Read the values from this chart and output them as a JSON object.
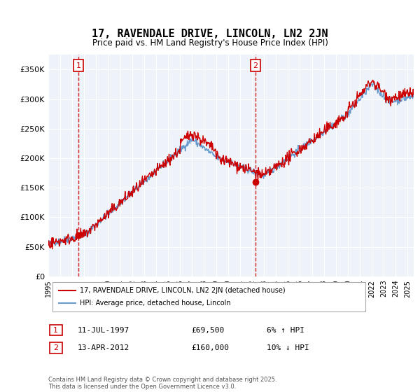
{
  "title": "17, RAVENDALE DRIVE, LINCOLN, LN2 2JN",
  "subtitle": "Price paid vs. HM Land Registry's House Price Index (HPI)",
  "ylabel_ticks": [
    "£0",
    "£50K",
    "£100K",
    "£150K",
    "£200K",
    "£250K",
    "£300K",
    "£350K"
  ],
  "ytick_vals": [
    0,
    50000,
    100000,
    150000,
    200000,
    250000,
    300000,
    350000
  ],
  "ylim": [
    0,
    370000
  ],
  "xlim_start": 1995.0,
  "xlim_end": 2025.5,
  "hpi_color": "#6699cc",
  "price_color": "#cc0000",
  "point1_x": 1997.53,
  "point1_y": 69500,
  "point2_x": 2012.28,
  "point2_y": 160000,
  "legend_label1": "17, RAVENDALE DRIVE, LINCOLN, LN2 2JN (detached house)",
  "legend_label2": "HPI: Average price, detached house, Lincoln",
  "annotation1_num": "1",
  "annotation1_date": "11-JUL-1997",
  "annotation1_price": "£69,500",
  "annotation1_hpi": "6% ↑ HPI",
  "annotation2_num": "2",
  "annotation2_date": "13-APR-2012",
  "annotation2_price": "£160,000",
  "annotation2_hpi": "10% ↓ HPI",
  "footer": "Contains HM Land Registry data © Crown copyright and database right 2025.\nThis data is licensed under the Open Government Licence v3.0.",
  "plot_bg_color": "#eef3fa"
}
